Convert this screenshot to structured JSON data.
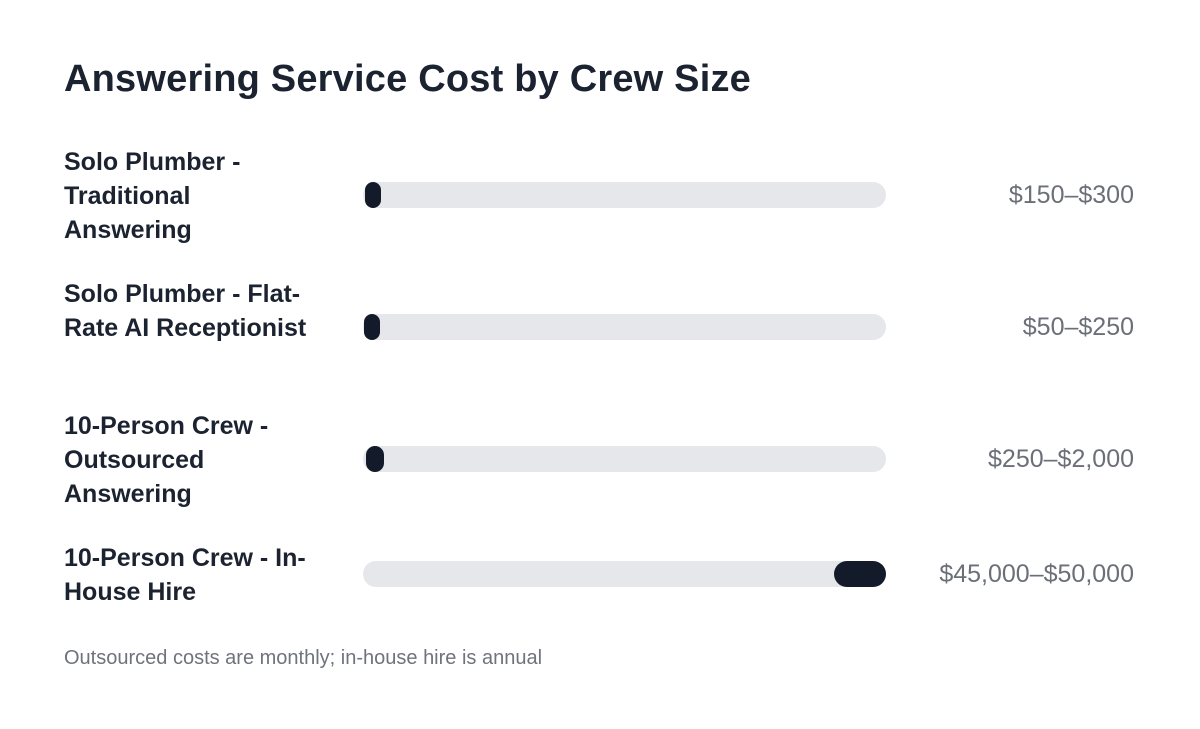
{
  "chart_data": {
    "type": "bar",
    "title": "Answering Service Cost by Crew Size",
    "footnote": "Outsourced costs are monthly; in-house hire is annual",
    "scale_max": 50000,
    "rows": [
      {
        "label": "Solo Plumber - Traditional Answering",
        "value_label": "$150–$300",
        "low": 150,
        "high": 300
      },
      {
        "label": "Solo Plumber - Flat-Rate AI Receptionist",
        "value_label": "$50–$250",
        "low": 50,
        "high": 250
      },
      {
        "label": "10-Person Crew - Outsourced Answering",
        "value_label": "$250–$2,000",
        "low": 250,
        "high": 2000
      },
      {
        "label": "10-Person Crew - In-House Hire",
        "value_label": "$45,000–$50,000",
        "low": 45000,
        "high": 50000
      }
    ]
  }
}
